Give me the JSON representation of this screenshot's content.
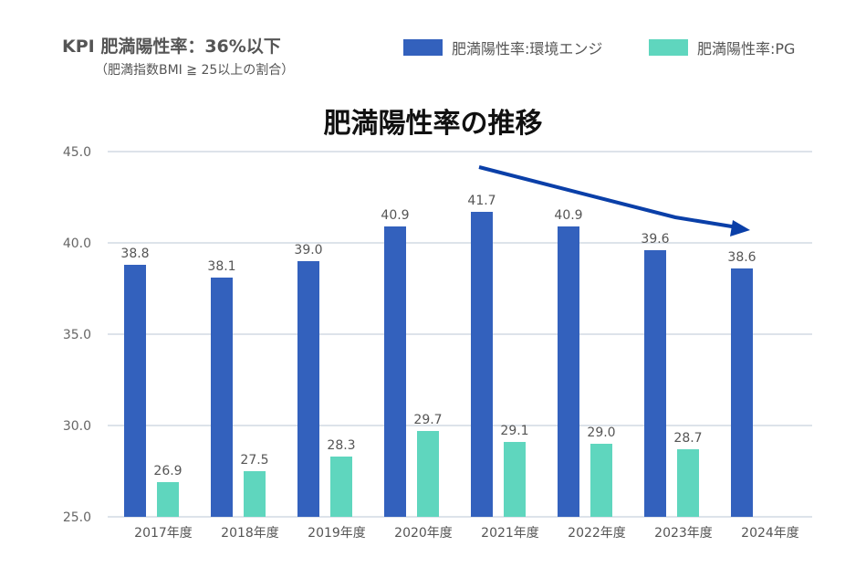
{
  "header": {
    "kpi": "KPI 肥満陽性率：36%以下",
    "note": "（肥満指数BMI ≧ 25以上の割合）"
  },
  "chart_data": {
    "type": "bar",
    "title": "肥満陽性率の推移",
    "categories": [
      "2017年度",
      "2018年度",
      "2019年度",
      "2020年度",
      "2021年度",
      "2022年度",
      "2023年度",
      "2024年度"
    ],
    "series": [
      {
        "name": "肥満陽性率:環境エンジ",
        "color": "#3361bd",
        "values": [
          38.8,
          38.1,
          39.0,
          40.9,
          41.7,
          40.9,
          39.6,
          38.6
        ]
      },
      {
        "name": "肥満陽性率:PG",
        "color": "#5fd6be",
        "values": [
          26.9,
          27.5,
          28.3,
          29.7,
          29.1,
          29.0,
          28.7,
          null
        ]
      }
    ],
    "ylim": [
      25,
      45
    ],
    "yticks": [
      "25.0",
      "30.0",
      "35.0",
      "40.0",
      "45.0"
    ],
    "grid": true,
    "legend": "top-right",
    "annotation": {
      "type": "arrow",
      "direction": "downward trend",
      "color": "#0a3fa8"
    }
  }
}
